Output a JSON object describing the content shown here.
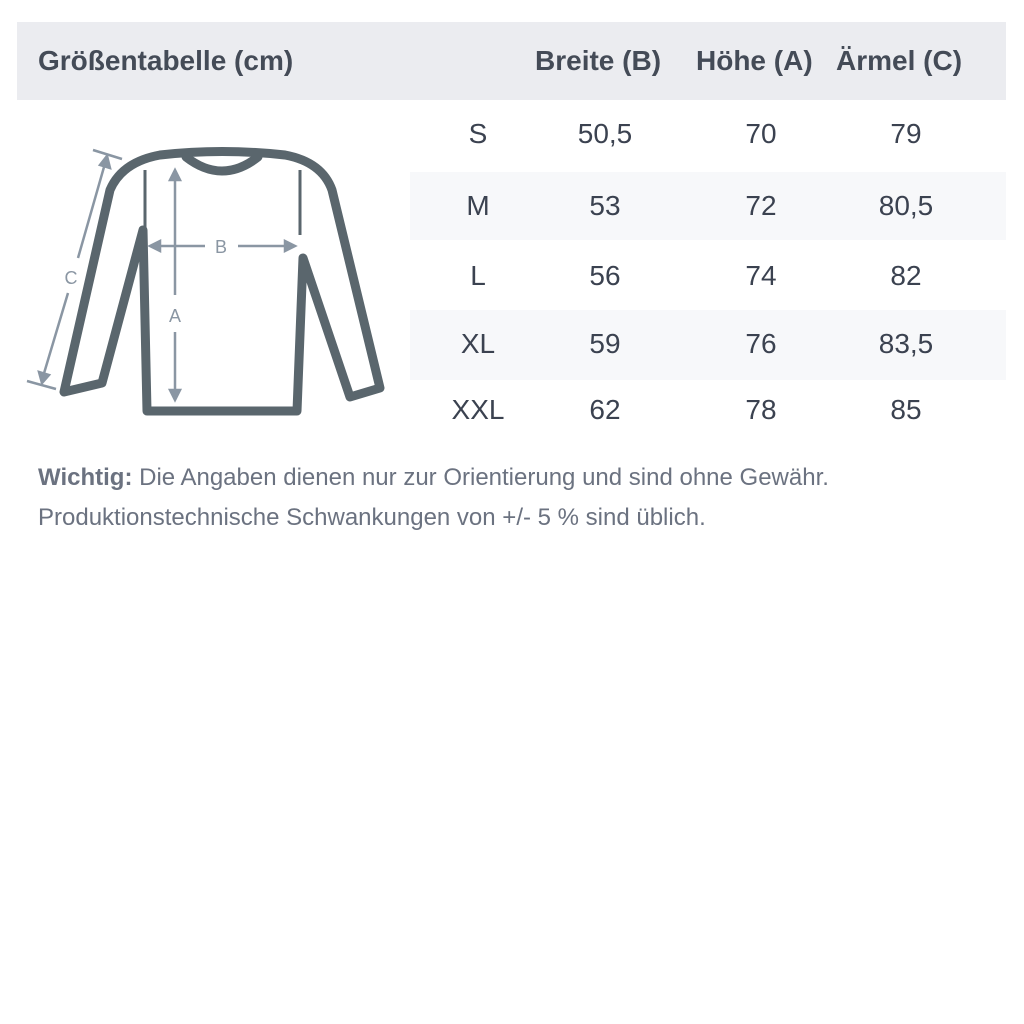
{
  "table": {
    "title": "Größentabelle (cm)",
    "columns": [
      "Breite (B)",
      "Höhe (A)",
      "Ärmel (C)"
    ],
    "rows": [
      {
        "size": "S",
        "values": [
          "50,5",
          "70",
          "79"
        ]
      },
      {
        "size": "M",
        "values": [
          "53",
          "72",
          "80,5"
        ]
      },
      {
        "size": "L",
        "values": [
          "56",
          "74",
          "82"
        ]
      },
      {
        "size": "XL",
        "values": [
          "59",
          "76",
          "83,5"
        ]
      },
      {
        "size": "XXL",
        "values": [
          "62",
          "78",
          "85"
        ]
      }
    ]
  },
  "diagram": {
    "labels": {
      "a": "A",
      "b": "B",
      "c": "C"
    },
    "garment_color": "#5a666d",
    "measure_color": "#8a96a3"
  },
  "note": {
    "bold": "Wichtig:",
    "line1": " Die Angaben dienen nur zur Orientierung und sind ohne Gewähr.",
    "line2": "Produktionstechnische Schwankungen von +/- 5 % sind üblich."
  }
}
